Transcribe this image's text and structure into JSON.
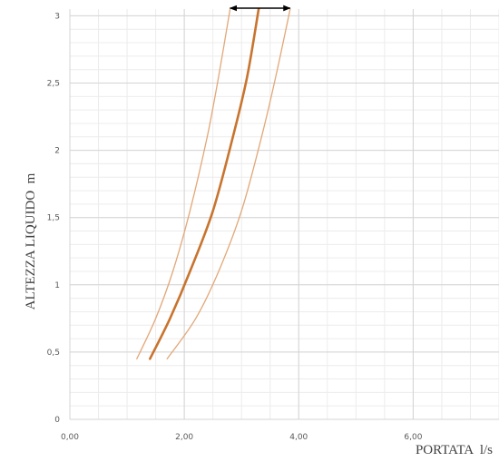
{
  "chart_data": {
    "type": "line",
    "title": "",
    "xlabel": "PORTATA  l/s",
    "ylabel": "ALTEZZA LIQUIDO  m",
    "xlim": [
      0,
      7.5
    ],
    "ylim": [
      0,
      3.05
    ],
    "x_ticks": [
      "0,00",
      "2,00",
      "4,00",
      "6,00"
    ],
    "x_tick_values": [
      0,
      2,
      4,
      6
    ],
    "y_ticks": [
      "0",
      "0,5",
      "1",
      "1,5",
      "2",
      "2,5",
      "3"
    ],
    "y_tick_values": [
      0,
      0.5,
      1,
      1.5,
      2,
      2.5,
      3
    ],
    "grid": true,
    "legend": "none",
    "series": [
      {
        "role": "lower-bound",
        "x": [
          1.17,
          1.5,
          1.8,
          2.1,
          2.4,
          2.6,
          2.8
        ],
        "y": [
          0.45,
          0.75,
          1.1,
          1.55,
          2.1,
          2.55,
          3.05
        ],
        "color": "#e2a777"
      },
      {
        "role": "main",
        "x": [
          1.4,
          1.75,
          2.1,
          2.5,
          2.85,
          3.1,
          3.3
        ],
        "y": [
          0.45,
          0.75,
          1.1,
          1.55,
          2.1,
          2.55,
          3.05
        ],
        "color": "#c8742e"
      },
      {
        "role": "upper-bound",
        "x": [
          1.7,
          2.2,
          2.6,
          3.0,
          3.35,
          3.6,
          3.85
        ],
        "y": [
          0.45,
          0.75,
          1.1,
          1.55,
          2.1,
          2.55,
          3.05
        ],
        "color": "#e2a777"
      }
    ],
    "annotations": [
      {
        "type": "double-arrow",
        "x_from": 2.8,
        "x_to": 3.85,
        "y": 3.05,
        "color": "#000000"
      }
    ]
  }
}
